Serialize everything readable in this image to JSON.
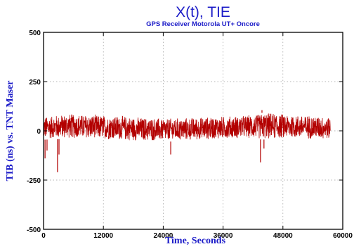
{
  "chart_data": {
    "type": "line",
    "title": "X(t), TIE",
    "subtitle": "GPS Receiver Motorola UT+ Oncore",
    "xlabel": "Time, Seconds",
    "ylabel": "TIB (ns) vs. TNT Maser",
    "xlim": [
      0,
      60000
    ],
    "ylim": [
      -500,
      500
    ],
    "xticks": [
      0,
      12000,
      24000,
      36000,
      48000,
      60000
    ],
    "xtick_labels": [
      "0",
      "12000",
      "24000",
      "36000",
      "48000",
      "60000"
    ],
    "yticks": [
      500,
      250,
      0,
      -250,
      -500
    ],
    "ytick_labels": [
      "500",
      "250",
      "0",
      "-250",
      "-500"
    ],
    "grid": true,
    "series": [
      {
        "color": "#b30000",
        "x_range": [
          0,
          57500
        ],
        "band": [
          {
            "x": 0,
            "low": -45,
            "high": 75
          },
          {
            "x": 5000,
            "low": -40,
            "high": 90
          },
          {
            "x": 10000,
            "low": -45,
            "high": 85
          },
          {
            "x": 15000,
            "low": -50,
            "high": 80
          },
          {
            "x": 20000,
            "low": -55,
            "high": 70
          },
          {
            "x": 25000,
            "low": -55,
            "high": 65
          },
          {
            "x": 30000,
            "low": -50,
            "high": 70
          },
          {
            "x": 35000,
            "low": -45,
            "high": 75
          },
          {
            "x": 40000,
            "low": -40,
            "high": 80
          },
          {
            "x": 45000,
            "low": -45,
            "high": 95
          },
          {
            "x": 50000,
            "low": -40,
            "high": 85
          },
          {
            "x": 55000,
            "low": -45,
            "high": 80
          },
          {
            "x": 57500,
            "low": -45,
            "high": 70
          }
        ],
        "spikes": [
          {
            "x": 300,
            "y": -140
          },
          {
            "x": 700,
            "y": -100
          },
          {
            "x": 2800,
            "y": -210
          },
          {
            "x": 3100,
            "y": -120
          },
          {
            "x": 25500,
            "y": -120
          },
          {
            "x": 43500,
            "y": -160
          },
          {
            "x": 43800,
            "y": 105
          },
          {
            "x": 44200,
            "y": -90
          }
        ]
      }
    ]
  }
}
